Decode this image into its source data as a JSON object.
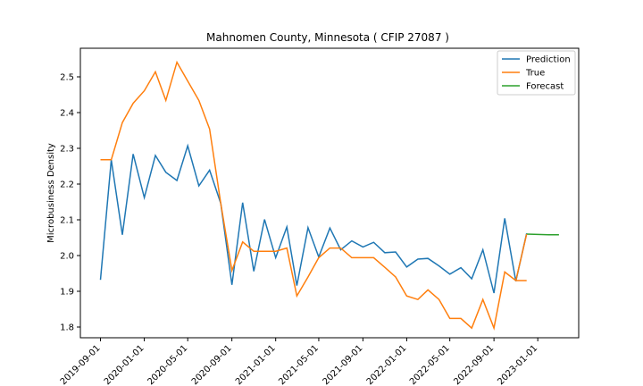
{
  "chart_data": {
    "type": "line",
    "title": "Mahnomen County, Minnesota ( CFIP 27087 )",
    "xlabel": "",
    "ylabel": "Microbusiness Density",
    "ylim": [
      1.77,
      2.58
    ],
    "xlim": [
      "2019-07-07",
      "2023-04-25"
    ],
    "yticks": [
      1.8,
      1.9,
      2.0,
      2.1,
      2.2,
      2.3,
      2.4,
      2.5
    ],
    "yticklabels": [
      "1.8",
      "1.9",
      "2.0",
      "2.1",
      "2.2",
      "2.3",
      "2.4",
      "2.5"
    ],
    "xticks": [
      "2019-09-01",
      "2020-01-01",
      "2020-05-01",
      "2020-09-01",
      "2021-01-01",
      "2021-05-01",
      "2021-09-01",
      "2022-01-01",
      "2022-05-01",
      "2022-09-01",
      "2023-01-01"
    ],
    "xticklabels": [
      "2019-09-01",
      "2020-01-01",
      "2020-05-01",
      "2020-09-01",
      "2021-01-01",
      "2021-05-01",
      "2021-09-01",
      "2022-01-01",
      "2022-05-01",
      "2022-09-01",
      "2023-01-01"
    ],
    "legend_position": "top-right",
    "x": [
      "2019-09-01",
      "2019-10-01",
      "2019-11-01",
      "2019-12-01",
      "2020-01-01",
      "2020-02-01",
      "2020-03-01",
      "2020-04-01",
      "2020-05-01",
      "2020-06-01",
      "2020-07-01",
      "2020-08-01",
      "2020-09-01",
      "2020-10-01",
      "2020-11-01",
      "2020-12-01",
      "2021-01-01",
      "2021-02-01",
      "2021-03-01",
      "2021-04-01",
      "2021-05-01",
      "2021-06-01",
      "2021-07-01",
      "2021-08-01",
      "2021-09-01",
      "2021-10-01",
      "2021-11-01",
      "2021-12-01",
      "2022-01-01",
      "2022-02-01",
      "2022-03-01",
      "2022-04-01",
      "2022-05-01",
      "2022-06-01",
      "2022-07-01",
      "2022-08-01",
      "2022-09-01",
      "2022-10-01",
      "2022-11-01",
      "2022-12-01"
    ],
    "series": [
      {
        "name": "Prediction",
        "color": "#1f77b4",
        "x": [
          "2019-09-01",
          "2019-10-01",
          "2019-11-01",
          "2019-12-01",
          "2020-01-01",
          "2020-02-01",
          "2020-03-01",
          "2020-04-01",
          "2020-05-01",
          "2020-06-01",
          "2020-07-01",
          "2020-08-01",
          "2020-09-01",
          "2020-10-01",
          "2020-11-01",
          "2020-12-01",
          "2021-01-01",
          "2021-02-01",
          "2021-03-01",
          "2021-04-01",
          "2021-05-01",
          "2021-06-01",
          "2021-07-01",
          "2021-08-01",
          "2021-09-01",
          "2021-10-01",
          "2021-11-01",
          "2021-12-01",
          "2022-01-01",
          "2022-02-01",
          "2022-03-01",
          "2022-04-01",
          "2022-05-01",
          "2022-06-01",
          "2022-07-01",
          "2022-08-01",
          "2022-09-01",
          "2022-10-01",
          "2022-11-01",
          "2022-12-01"
        ],
        "values": [
          1.932,
          2.268,
          2.058,
          2.284,
          2.162,
          2.28,
          2.233,
          2.21,
          2.307,
          2.195,
          2.239,
          2.146,
          1.918,
          2.148,
          1.956,
          2.101,
          1.994,
          2.08,
          1.916,
          2.078,
          1.996,
          2.077,
          2.016,
          2.041,
          2.024,
          2.037,
          2.008,
          2.01,
          1.968,
          1.99,
          1.992,
          1.971,
          1.948,
          1.966,
          1.935,
          2.016,
          1.895,
          2.104,
          1.928,
          2.062
        ]
      },
      {
        "name": "True",
        "color": "#ff7f0e",
        "x": [
          "2019-09-01",
          "2019-10-01",
          "2019-11-01",
          "2019-12-01",
          "2020-01-01",
          "2020-02-01",
          "2020-03-01",
          "2020-04-01",
          "2020-05-01",
          "2020-06-01",
          "2020-07-01",
          "2020-08-01",
          "2020-09-01",
          "2020-10-01",
          "2020-11-01",
          "2020-12-01",
          "2021-01-01",
          "2021-02-01",
          "2021-03-01",
          "2021-04-01",
          "2021-05-01",
          "2021-06-01",
          "2021-07-01",
          "2021-08-01",
          "2021-09-01",
          "2021-10-01",
          "2021-11-01",
          "2021-12-01",
          "2022-01-01",
          "2022-02-01",
          "2022-03-01",
          "2022-04-01",
          "2022-05-01",
          "2022-06-01",
          "2022-07-01",
          "2022-08-01",
          "2022-09-01",
          "2022-10-01",
          "2022-11-01",
          "2022-12-01"
        ],
        "values": [
          2.268,
          2.268,
          2.372,
          2.426,
          2.461,
          2.514,
          2.434,
          2.541,
          2.488,
          2.434,
          2.354,
          2.146,
          1.958,
          2.038,
          2.012,
          2.012,
          2.012,
          2.021,
          1.887,
          1.94,
          1.994,
          2.021,
          2.021,
          1.994,
          1.994,
          1.994,
          1.967,
          1.94,
          1.887,
          1.877,
          1.904,
          1.877,
          1.824,
          1.824,
          1.797,
          1.877,
          1.797,
          1.954,
          1.93,
          1.93
        ]
      },
      {
        "name": "Forecast",
        "color": "#2ca02c",
        "x": [
          "2022-12-01",
          "2023-01-01",
          "2023-02-01",
          "2023-03-01"
        ],
        "values": [
          2.06,
          2.059,
          2.058,
          2.058
        ]
      }
    ],
    "true_tail": {
      "x": [
        "2022-11-01",
        "2022-12-01"
      ],
      "values": [
        1.93,
        2.06
      ]
    }
  }
}
